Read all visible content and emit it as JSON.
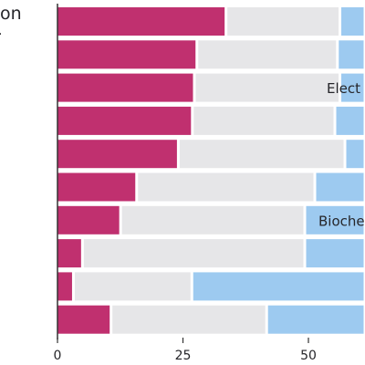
{
  "chart_data": {
    "type": "bar",
    "orientation": "horizontal",
    "stacked": true,
    "title": "",
    "xlabel": "",
    "ylabel": "",
    "xlim": [
      0,
      61
    ],
    "xticks": [
      0,
      25,
      50
    ],
    "grid": false,
    "left_edge_texts": [
      "on",
      "."
    ],
    "series": [
      {
        "name": "",
        "color": "#c0306f",
        "values": [
          33.3,
          27.5,
          27.0,
          26.6,
          23.8,
          15.5,
          12.3,
          4.7,
          2.9,
          10.4
        ]
      },
      {
        "name": "",
        "color": "#e6e6e8",
        "values": [
          22.7,
          28.0,
          29.0,
          28.4,
          33.2,
          35.5,
          36.7,
          44.3,
          23.6,
          31.0
        ]
      },
      {
        "name": "",
        "color": "#9dcaf0",
        "values": [
          5.0,
          5.5,
          5.0,
          6.0,
          4.0,
          10.0,
          12.0,
          12.0,
          34.5,
          19.6
        ]
      }
    ],
    "annotations": [
      {
        "row": 2,
        "text": "Elect"
      },
      {
        "row": 6,
        "text": "Bioche"
      }
    ]
  }
}
